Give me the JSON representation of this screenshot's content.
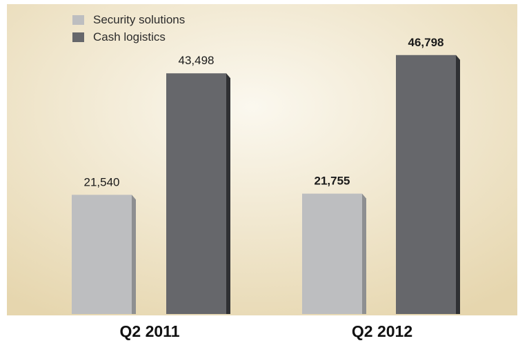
{
  "chart_data": {
    "type": "bar",
    "categories": [
      "Q2 2011",
      "Q2 2012"
    ],
    "series": [
      {
        "name": "Security solutions",
        "color": "#bdbec0",
        "side_color": "#8e8f91",
        "values": [
          21540,
          21755
        ]
      },
      {
        "name": "Cash logistics",
        "color": "#66676b",
        "side_color": "#2f3033",
        "values": [
          43498,
          46798
        ]
      }
    ],
    "value_labels": [
      [
        "21,540",
        "21,755"
      ],
      [
        "43,498",
        "46,798"
      ]
    ],
    "bold_categories": [
      false,
      true
    ],
    "ylim": [
      0,
      56000
    ],
    "grid": false,
    "legend_position": "top-left",
    "background": {
      "center": "#fbf8ef",
      "edge": "#e6d6ae"
    }
  }
}
